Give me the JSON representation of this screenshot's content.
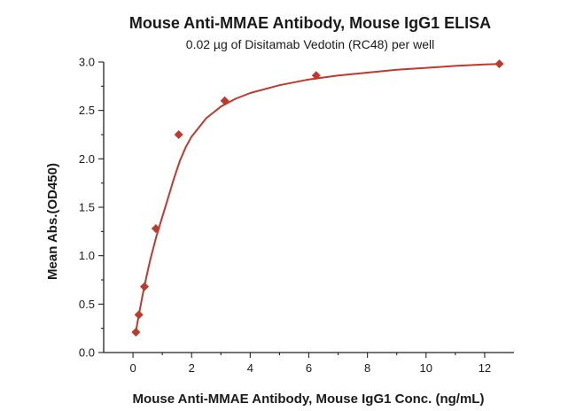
{
  "chart_data": {
    "type": "scatter",
    "title": "Mouse Anti-MMAE Antibody, Mouse IgG1 ELISA",
    "subtitle": "0.02 µg of Disitamab Vedotin (RC48) per well",
    "xlabel": "Mouse Anti-MMAE Antibody, Mouse IgG1 Conc. (ng/mL)",
    "ylabel": "Mean Abs.(OD450)",
    "xlim": [
      -1,
      13
    ],
    "ylim": [
      0,
      3
    ],
    "xticks": [
      "0",
      "2",
      "4",
      "6",
      "8",
      "10",
      "12"
    ],
    "yticks": [
      "0.0",
      "0.5",
      "1.0",
      "1.5",
      "2.0",
      "2.5",
      "3.0"
    ],
    "grid": false,
    "series": [
      {
        "marker": "diamond",
        "color": "#c0392b",
        "x": [
          0.1,
          0.2,
          0.39,
          0.78,
          1.56,
          3.13,
          6.25,
          12.5
        ],
        "y": [
          0.21,
          0.39,
          0.68,
          1.28,
          2.25,
          2.6,
          2.86,
          2.98
        ]
      }
    ],
    "fit_curve": {
      "color": "#c0392b",
      "x": [
        0.1,
        0.2,
        0.3,
        0.4,
        0.5,
        0.6,
        0.8,
        1.0,
        1.2,
        1.4,
        1.6,
        1.8,
        2.0,
        2.5,
        3.0,
        3.5,
        4.0,
        5.0,
        6.0,
        7.0,
        8.0,
        9.0,
        10.0,
        11.0,
        12.0,
        12.5
      ],
      "y": [
        0.22,
        0.39,
        0.55,
        0.7,
        0.84,
        0.97,
        1.2,
        1.4,
        1.6,
        1.8,
        1.98,
        2.12,
        2.23,
        2.42,
        2.54,
        2.62,
        2.68,
        2.76,
        2.82,
        2.86,
        2.89,
        2.92,
        2.94,
        2.96,
        2.975,
        2.98
      ]
    }
  }
}
